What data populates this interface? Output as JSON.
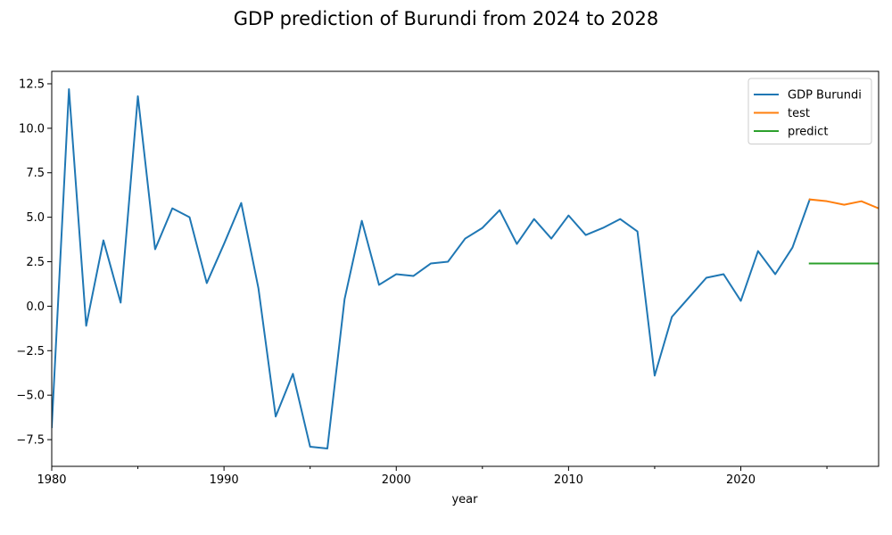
{
  "chart_data": {
    "type": "line",
    "title": "GDP prediction of Burundi from 2024 to 2028",
    "xlabel": "year",
    "ylabel": "",
    "xlim": [
      1980,
      2028
    ],
    "ylim": [
      -9.0,
      13.2
    ],
    "x_ticks": [
      1980,
      1990,
      2000,
      2010,
      2020
    ],
    "x_tick_labels": [
      "1980",
      "1990",
      "2000",
      "2010",
      "2020"
    ],
    "x_minor_ticks": [
      1985,
      1995,
      2005,
      2015,
      2025
    ],
    "y_ticks": [
      -7.5,
      -5.0,
      -2.5,
      0.0,
      2.5,
      5.0,
      7.5,
      10.0,
      12.5
    ],
    "y_tick_labels": [
      "−7.5",
      "−5.0",
      "−2.5",
      "0.0",
      "2.5",
      "5.0",
      "7.5",
      "10.0",
      "12.5"
    ],
    "grid": false,
    "legend_position": "top-right",
    "series": [
      {
        "name": "GDP Burundi",
        "color": "#1f77b4",
        "x": [
          1980,
          1981,
          1982,
          1983,
          1984,
          1985,
          1986,
          1987,
          1988,
          1989,
          1990,
          1991,
          1992,
          1993,
          1994,
          1995,
          1996,
          1997,
          1998,
          1999,
          2000,
          2001,
          2002,
          2003,
          2004,
          2005,
          2006,
          2007,
          2008,
          2009,
          2010,
          2011,
          2012,
          2013,
          2014,
          2015,
          2016,
          2017,
          2018,
          2019,
          2020,
          2021,
          2022,
          2023,
          2024
        ],
        "values": [
          -6.8,
          12.2,
          -1.1,
          3.7,
          0.2,
          11.8,
          3.2,
          5.5,
          5.0,
          1.3,
          3.5,
          5.8,
          1.0,
          -6.2,
          -3.8,
          -7.9,
          -8.0,
          0.4,
          4.8,
          1.2,
          1.8,
          1.7,
          2.4,
          2.5,
          3.8,
          4.4,
          5.4,
          3.5,
          4.9,
          3.8,
          5.1,
          4.0,
          4.4,
          4.9,
          4.2,
          -3.9,
          -0.6,
          0.5,
          1.6,
          1.8,
          0.3,
          3.1,
          1.8,
          3.3,
          6.0
        ]
      },
      {
        "name": "test",
        "color": "#ff7f0e",
        "x": [
          2024,
          2025,
          2026,
          2027,
          2028
        ],
        "values": [
          6.0,
          5.9,
          5.7,
          5.9,
          5.5
        ]
      },
      {
        "name": "predict",
        "color": "#2ca02c",
        "x": [
          2024,
          2025,
          2026,
          2027,
          2028
        ],
        "values": [
          2.4,
          2.4,
          2.4,
          2.4,
          2.4
        ]
      }
    ]
  }
}
